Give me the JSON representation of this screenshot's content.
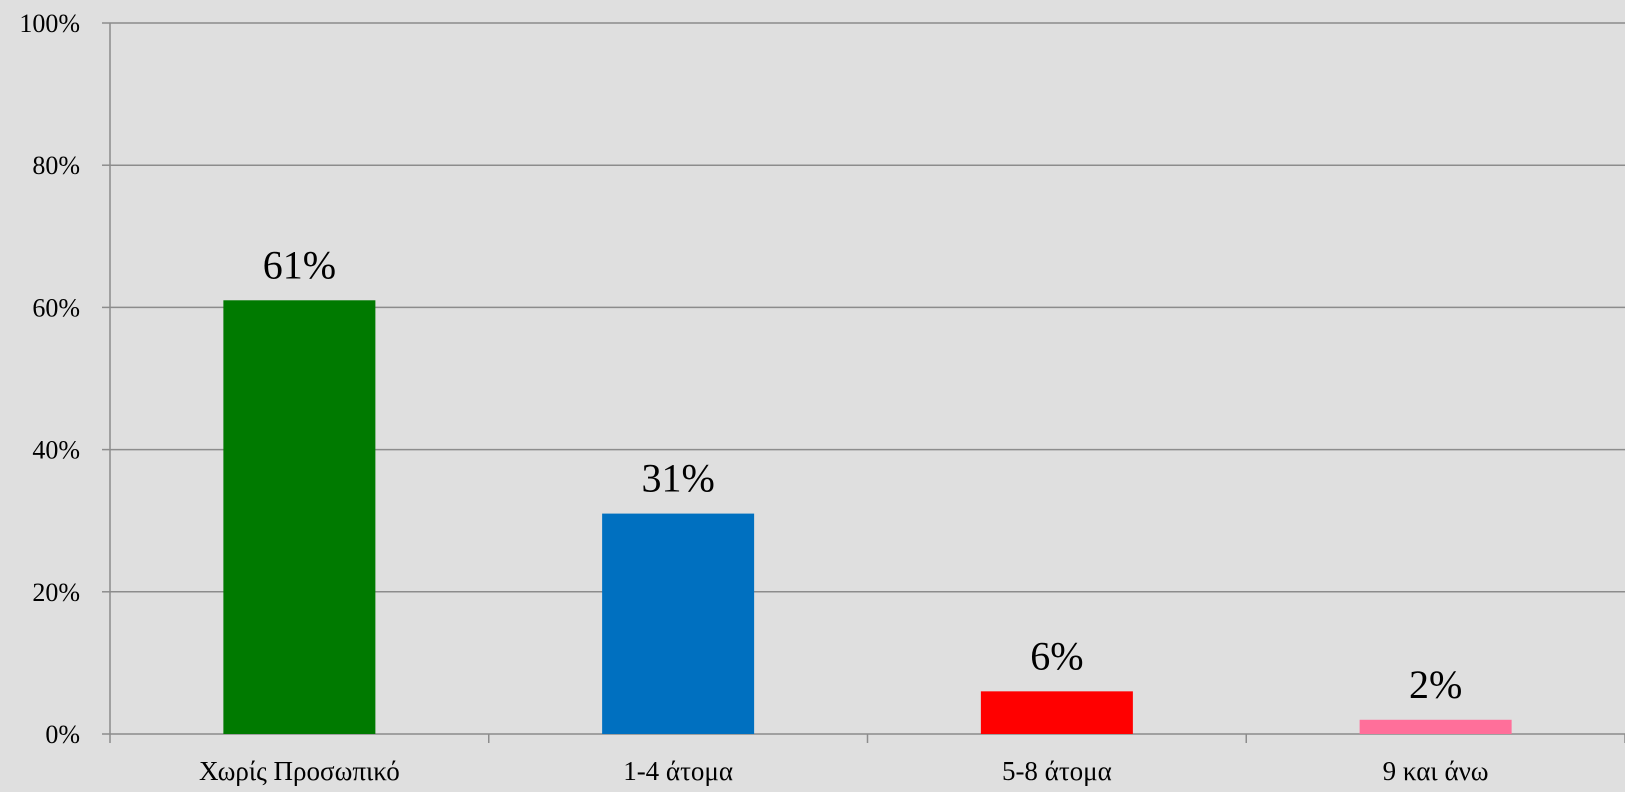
{
  "chart_data": {
    "type": "bar",
    "categories": [
      "Χωρίς Προσωπικό",
      "1-4 άτομα",
      "5-8 άτομα",
      "9 και άνω"
    ],
    "values": [
      61,
      31,
      6,
      2
    ],
    "data_labels": [
      "61%",
      "31%",
      "6%",
      "2%"
    ],
    "colors": [
      "#007a00",
      "#0070c0",
      "#ff0000",
      "#ff6f9a"
    ],
    "ylim": [
      0,
      100
    ],
    "y_ticks": [
      0,
      20,
      40,
      60,
      80,
      100
    ],
    "y_tick_labels": [
      "0%",
      "20%",
      "40%",
      "60%",
      "80%",
      "100%"
    ],
    "grid": true,
    "legend": "none"
  }
}
